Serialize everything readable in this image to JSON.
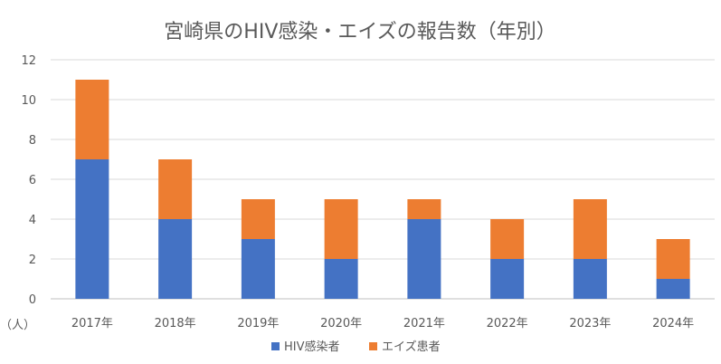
{
  "chart_data": {
    "type": "bar",
    "stacked": true,
    "title": "宮崎県のHIV感染・エイズの報告数（年別）",
    "ylabel": "（人）",
    "xlabel": "",
    "categories": [
      "2017年",
      "2018年",
      "2019年",
      "2020年",
      "2021年",
      "2022年",
      "2023年",
      "2024年"
    ],
    "series": [
      {
        "name": "HIV感染者",
        "color": "#4472C4",
        "values": [
          7,
          4,
          3,
          2,
          4,
          2,
          2,
          1
        ]
      },
      {
        "name": "エイズ患者",
        "color": "#ED7D31",
        "values": [
          4,
          3,
          2,
          3,
          1,
          2,
          3,
          2
        ]
      }
    ],
    "ylim": [
      0,
      12
    ],
    "yticks": [
      0,
      2,
      4,
      6,
      8,
      10,
      12
    ],
    "grid": true,
    "legend": "bottom"
  }
}
